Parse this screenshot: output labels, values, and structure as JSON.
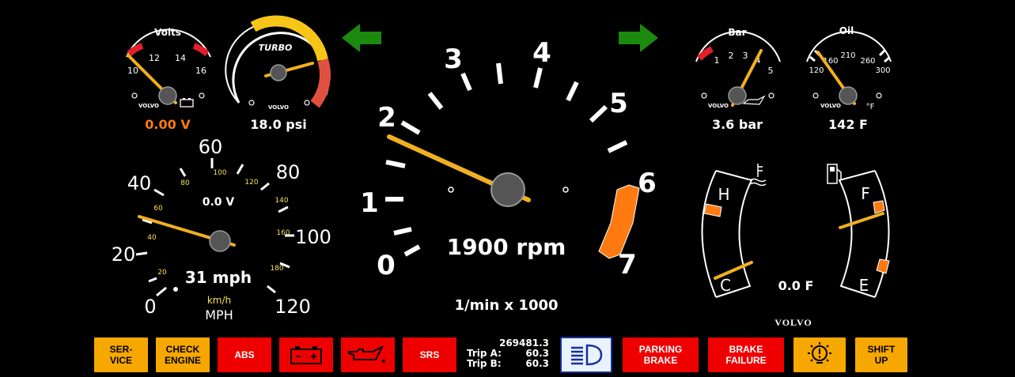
{
  "colors": {
    "background": "#000000",
    "needle": "#f0b020",
    "orange": "#ff7a10",
    "arrow": "#1b8a0e",
    "red_zone": "#e0202a",
    "yellow_zone": "#f5c518"
  },
  "turn_signals": {
    "left_icon": "arrow-left-icon",
    "right_icon": "arrow-right-icon"
  },
  "volts": {
    "label": "Volts",
    "scale": [
      "10",
      "12",
      "14",
      "16"
    ],
    "brand": "VOLVO",
    "icon": "battery-icon",
    "readout": "0.00 V"
  },
  "turbo": {
    "label": "TURBO",
    "brand": "VOLVO",
    "readout": "18.0 psi"
  },
  "tach": {
    "scale": [
      "0",
      "1",
      "2",
      "3",
      "4",
      "5",
      "6",
      "7"
    ],
    "readout": "1900 rpm",
    "unit": "1/min x 1000",
    "rpm": 1900
  },
  "bar": {
    "label": "Bar",
    "scale": [
      "1",
      "2",
      "3",
      "4",
      "5"
    ],
    "brand": "VOLVO",
    "icon": "oil-can-icon",
    "readout": "3.6 bar",
    "value": 3.6
  },
  "oil": {
    "label": "Oil",
    "scale": [
      "120",
      "160",
      "210",
      "260",
      "300"
    ],
    "brand": "VOLVO",
    "unit": "°F",
    "readout": "142  F",
    "value": 142
  },
  "speedo": {
    "mph_scale": [
      "0",
      "20",
      "40",
      "60",
      "80",
      "100",
      "120"
    ],
    "kmh_scale": [
      "20",
      "40",
      "60",
      "80",
      "100",
      "120",
      "140",
      "160",
      "180"
    ],
    "center_readout": "0.0 V",
    "readout": "31 mph",
    "kmh_label": "km/h",
    "mph_label": "MPH",
    "value": 31
  },
  "temp_fuel": {
    "temp_high": "H",
    "temp_low": "C",
    "fuel_full": "F",
    "fuel_empty": "E",
    "readout": "0.0 F",
    "brand": "VOLVO",
    "temp_icon": "coolant-temp-icon",
    "fuel_icon": "fuel-pump-icon"
  },
  "lamps": [
    {
      "label": "SER-\nVICE",
      "style": "amber"
    },
    {
      "label": "CHECK\nENGINE",
      "style": "amber"
    },
    {
      "label": "ABS",
      "style": "red"
    },
    {
      "label": "",
      "style": "red",
      "icon": "battery-icon"
    },
    {
      "label": "",
      "style": "red",
      "icon": "oil-can-icon"
    },
    {
      "label": "SRS",
      "style": "red"
    },
    {
      "label": "",
      "style": "blue",
      "icon": "headlight-icon"
    },
    {
      "label": "PARKING\nBRAKE",
      "style": "red"
    },
    {
      "label": "BRAKE\nFAILURE",
      "style": "red"
    },
    {
      "label": "",
      "style": "amber",
      "icon": "bulb-warning-icon"
    },
    {
      "label": "SHIFT\nUP",
      "style": "amber"
    }
  ],
  "odometer": {
    "total": "269481.3",
    "trip_a_label": "Trip A:",
    "trip_a": "60.3",
    "trip_b_label": "Trip B:",
    "trip_b": "60.3"
  }
}
